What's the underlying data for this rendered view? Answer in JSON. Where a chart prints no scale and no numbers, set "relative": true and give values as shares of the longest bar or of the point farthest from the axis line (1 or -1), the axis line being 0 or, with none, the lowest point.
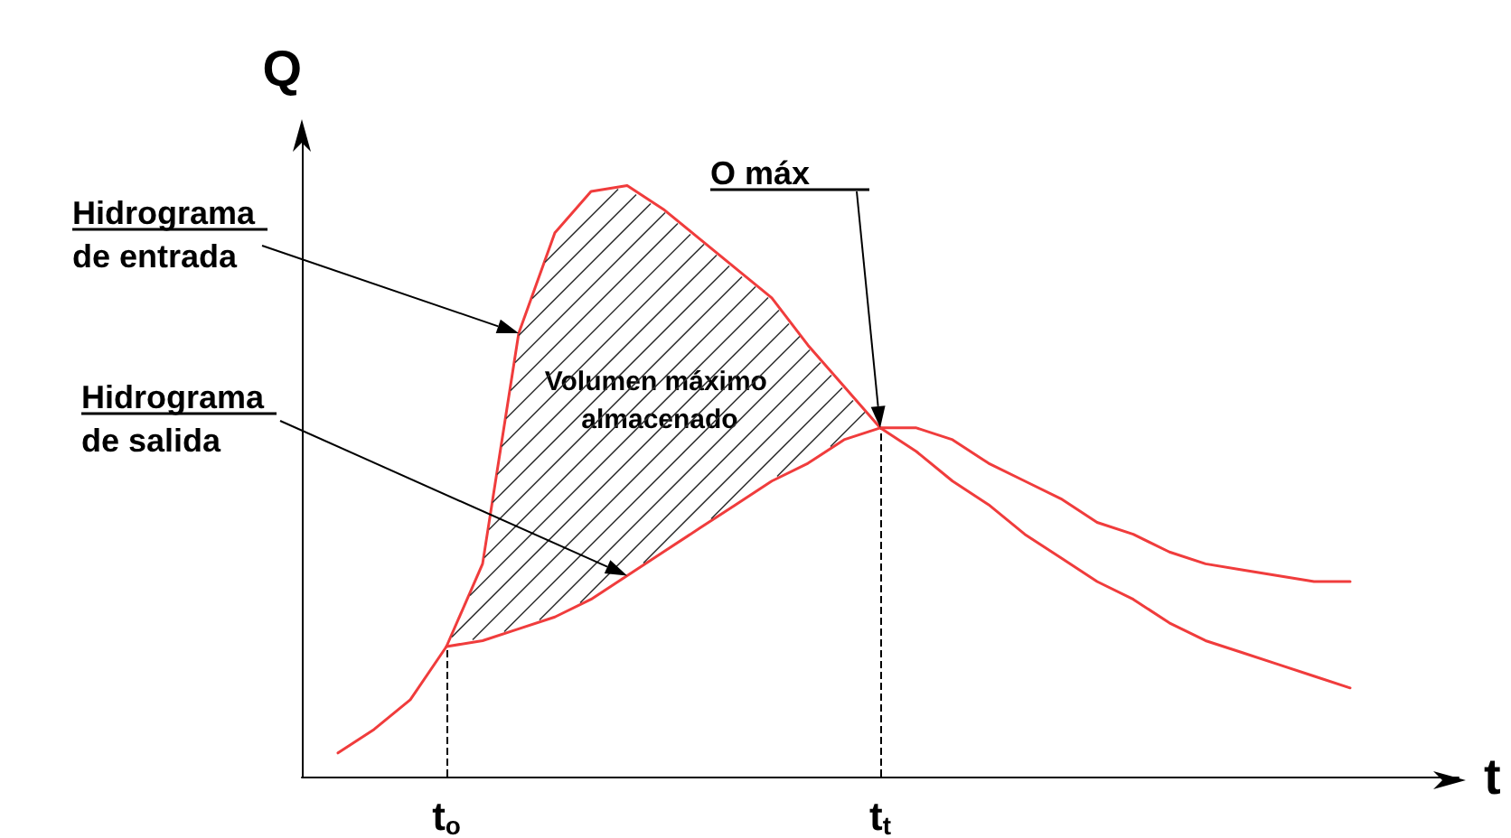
{
  "chart_data": {
    "type": "line",
    "relative": true,
    "xlabel": "t",
    "ylabel": "Q",
    "tick_labels": "x",
    "marker": "none",
    "line_style": "solid",
    "categories": [
      null,
      null,
      null,
      null,
      "t$_{o}$",
      null,
      null,
      null,
      null,
      null,
      null,
      null,
      null,
      null,
      null,
      null,
      "t$_{t}$",
      null,
      null,
      null,
      null,
      null,
      null,
      null,
      null,
      null,
      null,
      null,
      null,
      null,
      null,
      null,
      null
    ],
    "series": [
      {
        "color": "#f03c3c",
        "values": [
          null,
          0.04,
          0.08,
          0.13,
          0.22,
          0.36,
          0.75,
          0.92,
          0.99,
          1,
          0.96,
          0.91,
          0.86,
          0.81,
          0.73,
          0.66,
          0.59,
          0.55,
          0.5,
          0.46,
          0.41,
          0.37,
          0.33,
          0.3,
          0.26,
          0.23,
          0.21,
          0.19,
          0.17,
          0.15,
          null,
          null,
          null
        ]
      },
      {
        "color": "#f03c3c",
        "values": [
          null,
          null,
          null,
          null,
          0.22,
          0.23,
          0.25,
          0.27,
          0.3,
          0.34,
          0.38,
          0.42,
          0.46,
          0.5,
          0.53,
          0.57,
          0.59,
          0.59,
          0.57,
          0.53,
          0.5,
          0.47,
          0.43,
          0.41,
          0.38,
          0.36,
          0.35,
          0.34,
          0.33,
          0.33,
          null,
          null,
          null
        ]
      }
    ],
    "ref_lines": [
      {
        "axis": "x",
        "value": "t$_{o}$",
        "line_style": "dashed",
        "color": "#000000"
      },
      {
        "axis": "x",
        "value": "t$_{t}$",
        "line_style": "dashed",
        "color": "#000000"
      }
    ],
    "annotations": [
      "Hidrograma de entrada",
      "Hidrograma de salida",
      "Volumen máximo almacenado",
      "O máx"
    ]
  }
}
